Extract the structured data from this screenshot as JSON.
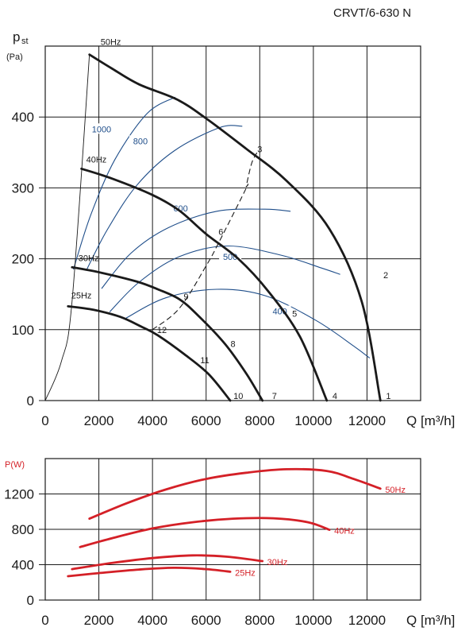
{
  "model_title": "CRVT/6-630 N",
  "chart_data": [
    {
      "type": "line",
      "ylabel_main": "p",
      "ylabel_sub": "st",
      "yunit": "(Pa)",
      "xlabel": "Q [m³/h]",
      "xlim": [
        0,
        14000
      ],
      "ylim": [
        0,
        500
      ],
      "xticks": [
        0,
        2000,
        4000,
        6000,
        8000,
        10000,
        12000
      ],
      "yticks": [
        0,
        100,
        200,
        300,
        400
      ],
      "grid": true,
      "series": [
        {
          "name": "50Hz",
          "color": "#1a1a1a",
          "points": [
            [
              1650,
              488
            ],
            [
              2500,
              468
            ],
            [
              3500,
              446
            ],
            [
              4900,
              425
            ],
            [
              6000,
              398
            ],
            [
              7500,
              355
            ],
            [
              9000,
              310
            ],
            [
              10600,
              242
            ],
            [
              11800,
              140
            ],
            [
              12500,
              0
            ]
          ]
        },
        {
          "name": "40Hz",
          "color": "#1a1a1a",
          "points": [
            [
              1350,
              327
            ],
            [
              2500,
              313
            ],
            [
              4000,
              290
            ],
            [
              5000,
              268
            ],
            [
              6000,
              235
            ],
            [
              7200,
              200
            ],
            [
              8300,
              155
            ],
            [
              9500,
              90
            ],
            [
              10500,
              0
            ]
          ]
        },
        {
          "name": "30Hz",
          "color": "#1a1a1a",
          "points": [
            [
              1000,
              188
            ],
            [
              2000,
              181
            ],
            [
              3400,
              168
            ],
            [
              4200,
              157
            ],
            [
              5000,
              143
            ],
            [
              5700,
              120
            ],
            [
              6700,
              80
            ],
            [
              7500,
              38
            ],
            [
              8100,
              0
            ]
          ]
        },
        {
          "name": "25Hz",
          "color": "#1a1a1a",
          "points": [
            [
              850,
              133
            ],
            [
              1800,
              128
            ],
            [
              2800,
              118
            ],
            [
              3600,
              104
            ],
            [
              4200,
              92
            ],
            [
              5200,
              65
            ],
            [
              6100,
              37
            ],
            [
              6900,
              0
            ]
          ]
        }
      ],
      "system_curves": [
        {
          "points": [
            [
              0,
              0
            ],
            [
              600,
              55
            ],
            [
              1000,
              140
            ],
            [
              1650,
              488
            ]
          ]
        },
        {
          "points": [
            [
              4000,
              100
            ],
            [
              5000,
              130
            ],
            [
              6000,
              190
            ],
            [
              6500,
              225
            ],
            [
              7500,
              300
            ],
            [
              7500,
              303
            ],
            [
              7700,
              335
            ],
            [
              7900,
              350
            ]
          ],
          "style": "dashed"
        }
      ],
      "efficiency_lines": [
        {
          "label": "1000",
          "label_at": [
            2100,
            382
          ],
          "points": [
            [
              1050,
              185
            ],
            [
              1700,
              262
            ],
            [
              2600,
              340
            ],
            [
              3800,
              405
            ],
            [
              4850,
              428
            ]
          ]
        },
        {
          "label": "800",
          "label_at": [
            3550,
            365
          ],
          "points": [
            [
              1550,
              185
            ],
            [
              2300,
              240
            ],
            [
              3400,
              303
            ],
            [
              4800,
              352
            ],
            [
              6500,
              385
            ],
            [
              7350,
              387
            ]
          ]
        },
        {
          "label": "600",
          "label_at": [
            5050,
            270
          ],
          "points": [
            [
              2100,
              158
            ],
            [
              3200,
              208
            ],
            [
              4600,
              244
            ],
            [
              6400,
              267
            ],
            [
              8200,
              270
            ],
            [
              9150,
              267
            ]
          ]
        },
        {
          "label": "500",
          "label_at": [
            6900,
            202
          ],
          "points": [
            [
              2400,
              125
            ],
            [
              3500,
              167
            ],
            [
              5000,
              203
            ],
            [
              6800,
              218
            ],
            [
              8800,
              205
            ],
            [
              10300,
              187
            ],
            [
              11000,
              178
            ]
          ]
        },
        {
          "label": "400",
          "label_at": [
            8750,
            125
          ],
          "points": [
            [
              2950,
              115
            ],
            [
              4500,
              145
            ],
            [
              6400,
              157
            ],
            [
              8200,
              148
            ],
            [
              10100,
              113
            ],
            [
              11500,
              77
            ],
            [
              12100,
              60
            ]
          ]
        }
      ],
      "operating_points": [
        {
          "label": "1",
          "at": [
            12800,
            7
          ]
        },
        {
          "label": "2",
          "at": [
            12700,
            177
          ]
        },
        {
          "label": "3",
          "at": [
            8000,
            355
          ]
        },
        {
          "label": "4",
          "at": [
            10800,
            7
          ]
        },
        {
          "label": "5",
          "at": [
            9300,
            123
          ]
        },
        {
          "label": "6",
          "at": [
            6550,
            238
          ]
        },
        {
          "label": "7",
          "at": [
            8550,
            7
          ]
        },
        {
          "label": "8",
          "at": [
            7000,
            80
          ]
        },
        {
          "label": "9",
          "at": [
            5250,
            147
          ]
        },
        {
          "label": "10",
          "at": [
            7200,
            7
          ]
        },
        {
          "label": "11",
          "at": [
            5950,
            57
          ]
        },
        {
          "label": "12",
          "at": [
            4350,
            100
          ]
        }
      ]
    },
    {
      "type": "line",
      "ylabel": "P(W)",
      "xlabel": "Q [m³/h]",
      "xlim": [
        0,
        14000
      ],
      "ylim": [
        0,
        1600
      ],
      "xticks": [
        0,
        2000,
        4000,
        6000,
        8000,
        10000,
        12000
      ],
      "yticks": [
        0,
        400,
        800,
        1200
      ],
      "ytick_labels": [
        "0",
        "400",
        "800",
        "1200"
      ],
      "grid": true,
      "series": [
        {
          "name": "50Hz",
          "color": "#d42027",
          "points": [
            [
              1650,
              920
            ],
            [
              3000,
              1090
            ],
            [
              4500,
              1250
            ],
            [
              6000,
              1370
            ],
            [
              7500,
              1440
            ],
            [
              9000,
              1480
            ],
            [
              10500,
              1460
            ],
            [
              11500,
              1370
            ],
            [
              12500,
              1260
            ]
          ]
        },
        {
          "name": "40Hz",
          "color": "#d42027",
          "points": [
            [
              1300,
              600
            ],
            [
              2500,
              700
            ],
            [
              4000,
              810
            ],
            [
              5500,
              880
            ],
            [
              7000,
              920
            ],
            [
              8500,
              925
            ],
            [
              9800,
              880
            ],
            [
              10600,
              795
            ]
          ]
        },
        {
          "name": "30Hz",
          "color": "#d42027",
          "points": [
            [
              1000,
              350
            ],
            [
              2500,
              420
            ],
            [
              4000,
              475
            ],
            [
              5500,
              505
            ],
            [
              6800,
              490
            ],
            [
              8100,
              440
            ]
          ]
        },
        {
          "name": "25Hz",
          "color": "#d42027",
          "points": [
            [
              850,
              270
            ],
            [
              2000,
              305
            ],
            [
              3500,
              345
            ],
            [
              4800,
              365
            ],
            [
              6000,
              350
            ],
            [
              6900,
              320
            ]
          ]
        }
      ]
    }
  ]
}
